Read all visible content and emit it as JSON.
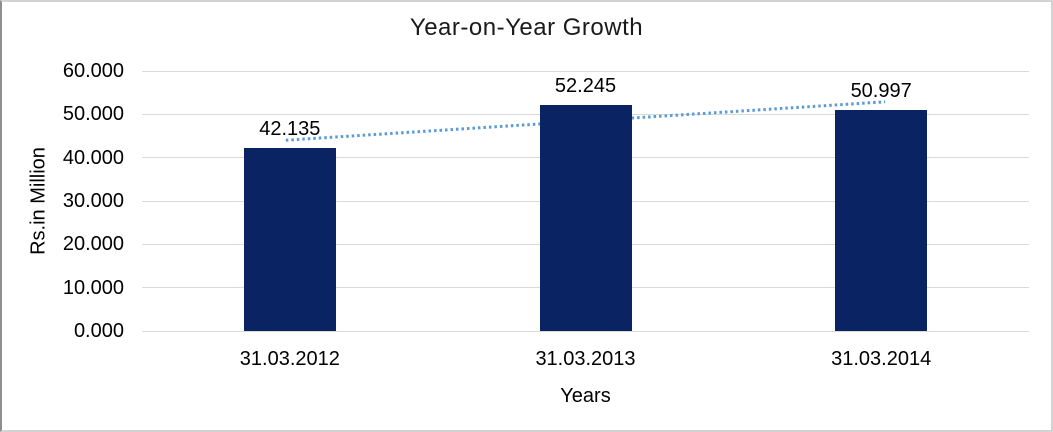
{
  "chart_data": {
    "type": "bar",
    "title": "Year-on-Year Growth",
    "xlabel": "Years",
    "ylabel": "Rs.in Million",
    "categories": [
      "31.03.2012",
      "31.03.2013",
      "31.03.2014"
    ],
    "values": [
      42.135,
      52.245,
      50.997
    ],
    "value_labels": [
      "42.135",
      "52.245",
      "50.997"
    ],
    "yticks": [
      "60.000",
      "50.000",
      "40.000",
      "30.000",
      "20.000",
      "10.000",
      "0.000"
    ],
    "ylim": [
      0,
      60
    ],
    "grid": "horizontal",
    "legend": "none",
    "bar_color": "#0a2463",
    "gridline_color": "#d9d9d9",
    "text_color": "#000000",
    "trendline": {
      "type": "linear",
      "style": "dotted",
      "color": "#5b9bd5",
      "start_value": 44.03,
      "end_value": 52.89
    }
  }
}
